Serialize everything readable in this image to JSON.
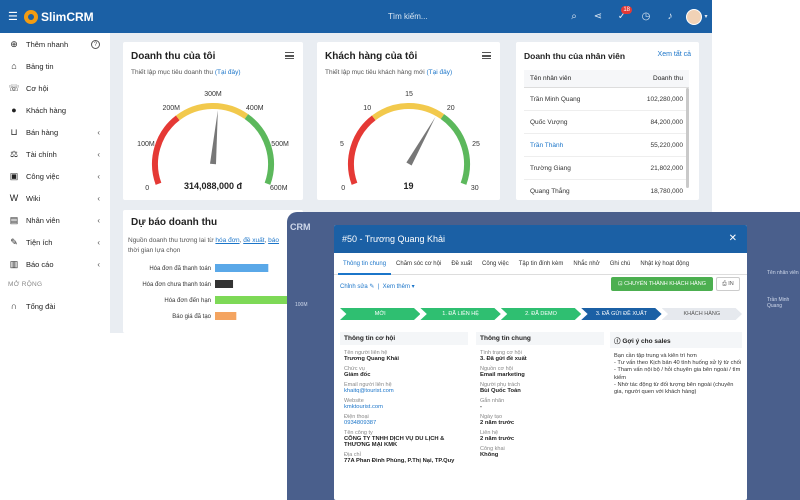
{
  "app": {
    "name": "SlimCRM",
    "search_placeholder": "Tìm kiếm...",
    "notif_count": "18"
  },
  "sidebar": {
    "quick_add": "Thêm nhanh",
    "items": [
      {
        "label": "Bảng tin",
        "icon": "home-icon",
        "chevron": false
      },
      {
        "label": "Cơ hội",
        "icon": "phone-icon",
        "chevron": false
      },
      {
        "label": "Khách hàng",
        "icon": "user-icon",
        "chevron": false
      },
      {
        "label": "Bán hàng",
        "icon": "cart-icon",
        "chevron": true
      },
      {
        "label": "Tài chính",
        "icon": "balance-icon",
        "chevron": true
      },
      {
        "label": "Công việc",
        "icon": "tasks-icon",
        "chevron": true
      },
      {
        "label": "Wiki",
        "icon": "wiki-icon",
        "chevron": true
      },
      {
        "label": "Nhân viên",
        "icon": "staff-icon",
        "chevron": true
      },
      {
        "label": "Tiện ích",
        "icon": "wrench-icon",
        "chevron": true
      },
      {
        "label": "Báo cáo",
        "icon": "chart-icon",
        "chevron": true
      }
    ],
    "section_label": "MỞ RỘNG",
    "extra_item": {
      "label": "Tổng đài",
      "icon": "headset-icon"
    }
  },
  "revenue_card": {
    "title": "Doanh thu của tôi",
    "subtitle": "Thiết lập mục tiêu doanh thu",
    "link": "(Tại đây)",
    "ticks": [
      "0",
      "100M",
      "200M",
      "300M",
      "400M",
      "500M",
      "600M"
    ],
    "value_text": "314,088,000 đ",
    "value": 314088000,
    "max": 600000000
  },
  "customer_card": {
    "title": "Khách hàng của tôi",
    "subtitle": "Thiết lập mục tiêu khách hàng mới",
    "link": "(Tại đây)",
    "ticks": [
      "0",
      "5",
      "10",
      "15",
      "20",
      "25",
      "30"
    ],
    "value_text": "19",
    "value": 19,
    "max": 30
  },
  "staff_card": {
    "title": "Doanh thu của nhân viên",
    "view_all": "Xem tất cả",
    "col_name": "Tên nhân viên",
    "col_value": "Doanh thu",
    "rows": [
      {
        "name": "Trần Minh Quang",
        "value": "102,280,000",
        "link": false
      },
      {
        "name": "Quốc Vượng",
        "value": "84,200,000",
        "link": false
      },
      {
        "name": "Trần Thành",
        "value": "55,220,000",
        "link": true
      },
      {
        "name": "Trường Giang",
        "value": "21,802,000",
        "link": false
      },
      {
        "name": "Quang Thắng",
        "value": "18,780,000",
        "link": false
      }
    ]
  },
  "forecast_card": {
    "title": "Dự báo doanh thu",
    "sub1": "Nguồn doanh thu tương lai từ",
    "sub_link1": "hóa đơn",
    "sub_link2": "đề xuất",
    "sub_link3": "báo",
    "sub2": "thời gian lựa chọn"
  },
  "chart_data": {
    "type": "bar",
    "orientation": "horizontal",
    "categories": [
      "Hóa đơn đã thanh toán",
      "Hóa đơn chưa thanh toán",
      "Hóa đơn đến hạn",
      "Báo giá đã tạo"
    ],
    "values": [
      65,
      22,
      100,
      26
    ],
    "colors": [
      "#5aa8e8",
      "#333333",
      "#7ed957",
      "#f4a460"
    ]
  },
  "modal": {
    "title": "#50 - Trương Quang Khải",
    "tabs": [
      "Thông tin chung",
      "Chăm sóc cơ hội",
      "Đề xuất",
      "Công việc",
      "Tập tin đính kèm",
      "Nhắc nhở",
      "Ghi chú",
      "Nhật ký hoạt động"
    ],
    "edit": "Chỉnh sửa",
    "more": "Xem thêm",
    "convert_btn": "CHUYỂN THÀNH KHÁCH HÀNG",
    "print_btn": "IN",
    "steps": [
      {
        "label": "MỚI",
        "color": "#2fbf71"
      },
      {
        "label": "1. ĐÃ LIÊN HỆ",
        "color": "#2fbf71"
      },
      {
        "label": "2. ĐÃ DEMO",
        "color": "#2fbf71"
      },
      {
        "label": "3. ĐÃ GỬI ĐỀ XUẤT",
        "color": "#1b60a5"
      },
      {
        "label": "KHÁCH HÀNG",
        "color": "#e6e9ee"
      }
    ],
    "col1_title": "Thông tin cơ hội",
    "col1": [
      {
        "label": "Tên người liên hệ",
        "value": "Trương Quang Khải",
        "link": false
      },
      {
        "label": "Chức vụ",
        "value": "Giám đốc",
        "link": false
      },
      {
        "label": "Email người liên hệ",
        "value": "khaitq@tourist.com",
        "link": true
      },
      {
        "label": "Website",
        "value": "kmktourist.com",
        "link": true
      },
      {
        "label": "Điện thoại",
        "value": "0934809387",
        "link": true
      },
      {
        "label": "Tên công ty",
        "value": "CÔNG TY TNHH DỊCH VỤ DU LỊCH & THƯƠNG MẠI KMK",
        "link": false
      },
      {
        "label": "Địa chỉ",
        "value": "77A Phan Đình Phùng, P.Thị Nại, TP.Quy",
        "link": false
      }
    ],
    "col2_title": "Thông tin chung",
    "col2": [
      {
        "label": "Tình trạng cơ hội",
        "value": "3. Đã gửi đề xuất"
      },
      {
        "label": "Nguồn cơ hội",
        "value": "Email marketing"
      },
      {
        "label": "Người phụ trách",
        "value": "Bùi Quốc Toản"
      },
      {
        "label": "Gắn nhãn",
        "value": "-"
      },
      {
        "label": "Ngày tạo",
        "value": "2 năm trước"
      },
      {
        "label": "Liên hệ",
        "value": "2 năm trước"
      },
      {
        "label": "Công khai",
        "value": "Không"
      }
    ],
    "col3_title": "Gợi ý cho sales",
    "tips": [
      "Bạn cần tập trung và kiên trì hơn",
      "- Tư vấn theo Kịch bản 40 tình huống xử lý từ chối",
      "- Tham vấn nội bộ / hỏi chuyên gia bên ngoài / tìm kiếm",
      "- Nhờ tác động từ đối tượng bên ngoài (chuyên gia, người quen với khách hàng)"
    ]
  },
  "behind": {
    "brand": "CRM",
    "staff_label": "Tên nhân viên",
    "staff_name": "Trần Minh Quang",
    "gauge_tick": "100M"
  }
}
